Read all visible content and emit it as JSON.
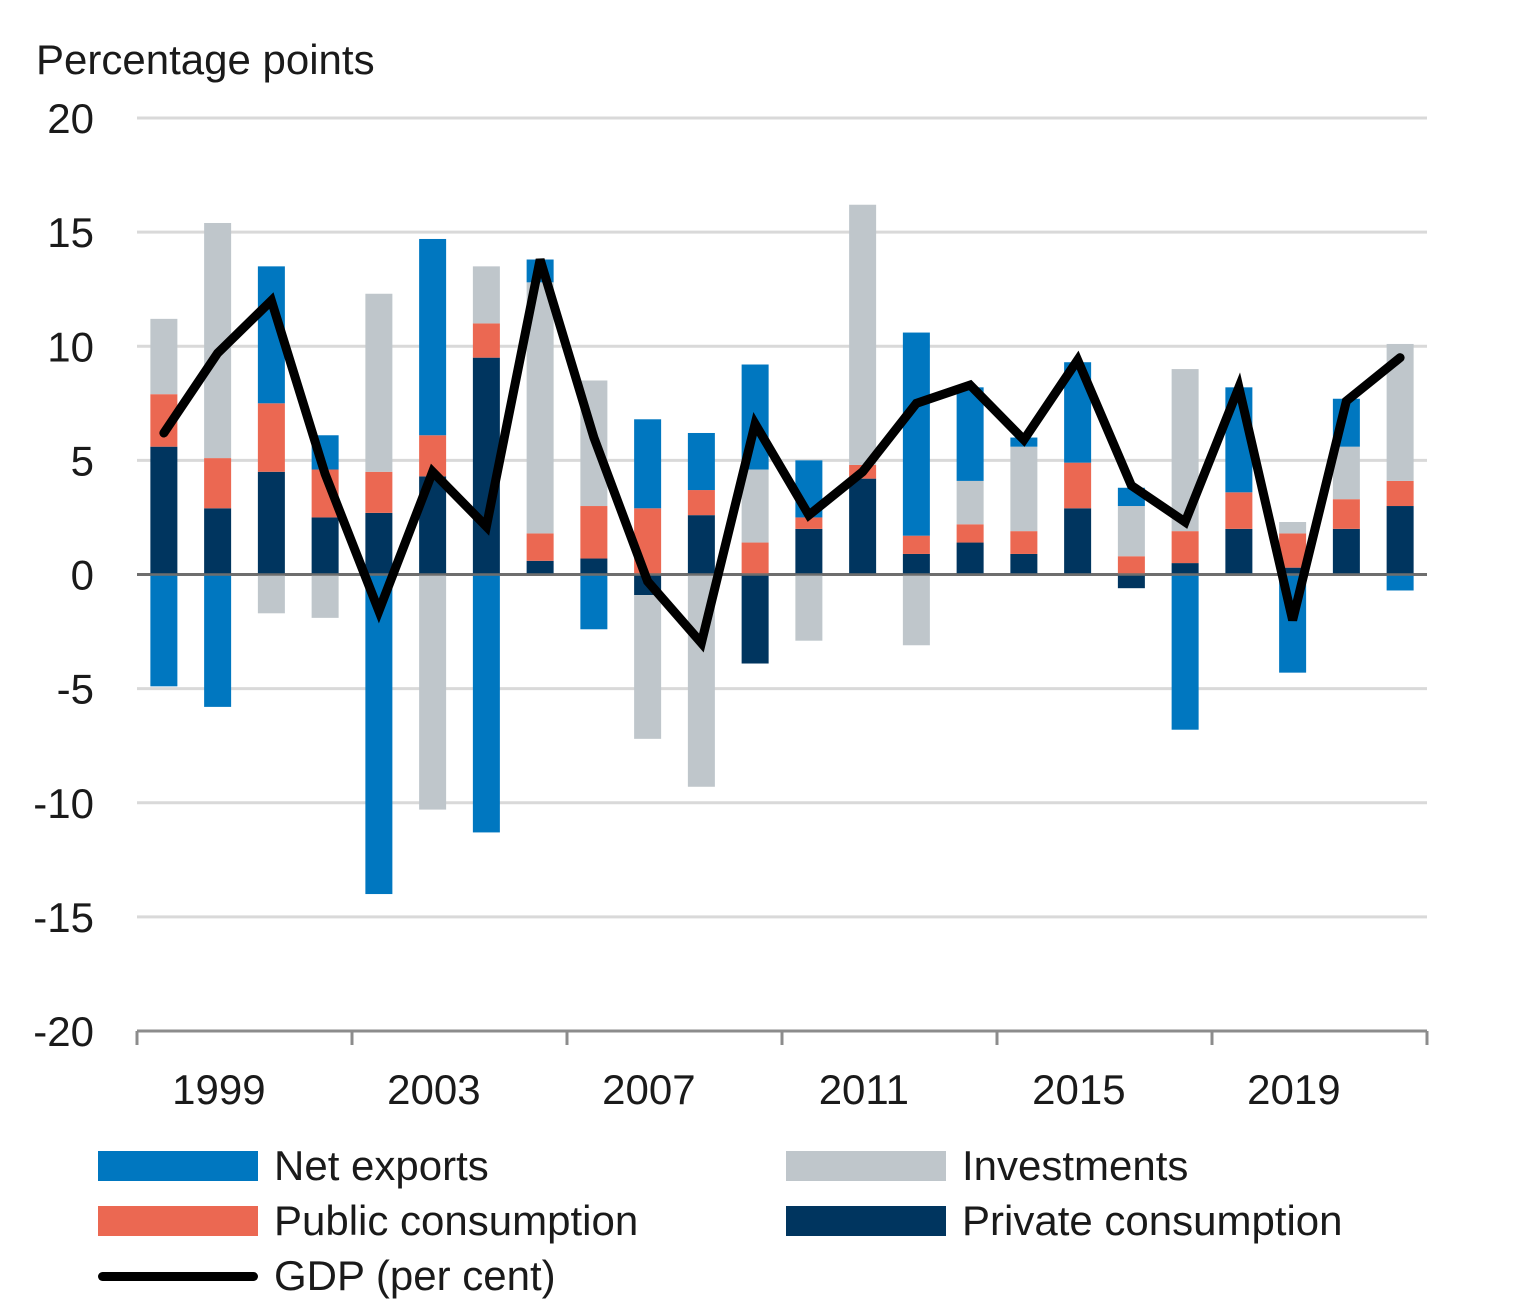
{
  "chart_data": {
    "type": "bar",
    "stacked": true,
    "ylabel": "Percentage points",
    "ylim": [
      -20,
      20
    ],
    "yticks": [
      20,
      15,
      10,
      5,
      0,
      -5,
      -10,
      -15,
      -20
    ],
    "x": [
      1999,
      2000,
      2001,
      2002,
      2003,
      2004,
      2005,
      2006,
      2007,
      2008,
      2009,
      2010,
      2011,
      2012,
      2013,
      2014,
      2015,
      2016,
      2017,
      2018,
      2019,
      2020,
      2021,
      2022
    ],
    "xticks": [
      "1999",
      "2003",
      "2007",
      "2011",
      "2015",
      "2019"
    ],
    "grid": true,
    "legend_position": "bottom",
    "series": [
      {
        "name": "Private consumption",
        "color": "#00355f",
        "values": [
          5.6,
          2.9,
          4.5,
          2.5,
          2.7,
          4.3,
          9.5,
          0.6,
          0.7,
          -0.9,
          2.6,
          -3.9,
          2.0,
          4.2,
          0.9,
          1.4,
          0.9,
          2.9,
          -0.6,
          0.5,
          2.0,
          0.3,
          2.0,
          3.0
        ]
      },
      {
        "name": "Public consumption",
        "color": "#eb6852",
        "values": [
          2.3,
          2.2,
          3.0,
          2.1,
          1.8,
          1.8,
          1.5,
          1.2,
          2.3,
          2.9,
          1.1,
          1.4,
          0.5,
          0.6,
          0.8,
          0.8,
          1.0,
          2.0,
          0.8,
          1.4,
          1.6,
          1.5,
          1.3,
          1.1
        ]
      },
      {
        "name": "Investments",
        "color": "#bfc6cb",
        "values": [
          3.3,
          10.3,
          -1.7,
          -1.9,
          7.8,
          -10.3,
          2.5,
          11.0,
          5.5,
          -6.3,
          -9.3,
          3.2,
          -2.9,
          11.4,
          -3.1,
          1.9,
          3.7,
          0.0,
          2.2,
          7.1,
          0.0,
          0.5,
          2.3,
          6.0
        ]
      },
      {
        "name": "Net exports",
        "color": "#0077c0",
        "values": [
          -4.9,
          -5.8,
          6.0,
          1.5,
          -14.0,
          8.6,
          -11.3,
          1.0,
          -2.4,
          3.9,
          2.5,
          4.6,
          2.5,
          0.0,
          8.9,
          4.1,
          0.4,
          4.4,
          0.8,
          -6.8,
          4.6,
          -4.3,
          2.1,
          -0.7
        ]
      }
    ],
    "line": {
      "name": "GDP (per cent)",
      "color": "#000000",
      "values": [
        6.2,
        9.7,
        12.0,
        4.4,
        -1.6,
        4.5,
        2.1,
        13.8,
        6.0,
        -0.3,
        -3.0,
        6.6,
        2.6,
        4.5,
        7.5,
        8.3,
        5.9,
        9.4,
        3.9,
        2.3,
        8.2,
        -2.0,
        7.6,
        9.5
      ]
    }
  },
  "legend": [
    {
      "label": "Net exports",
      "color": "#0077c0",
      "kind": "bar"
    },
    {
      "label": "Investments",
      "color": "#bfc6cb",
      "kind": "bar"
    },
    {
      "label": "Public consumption",
      "color": "#eb6852",
      "kind": "bar"
    },
    {
      "label": "Private consumption",
      "color": "#00355f",
      "kind": "bar"
    },
    {
      "label": "GDP (per cent)",
      "color": "#000000",
      "kind": "line"
    }
  ]
}
